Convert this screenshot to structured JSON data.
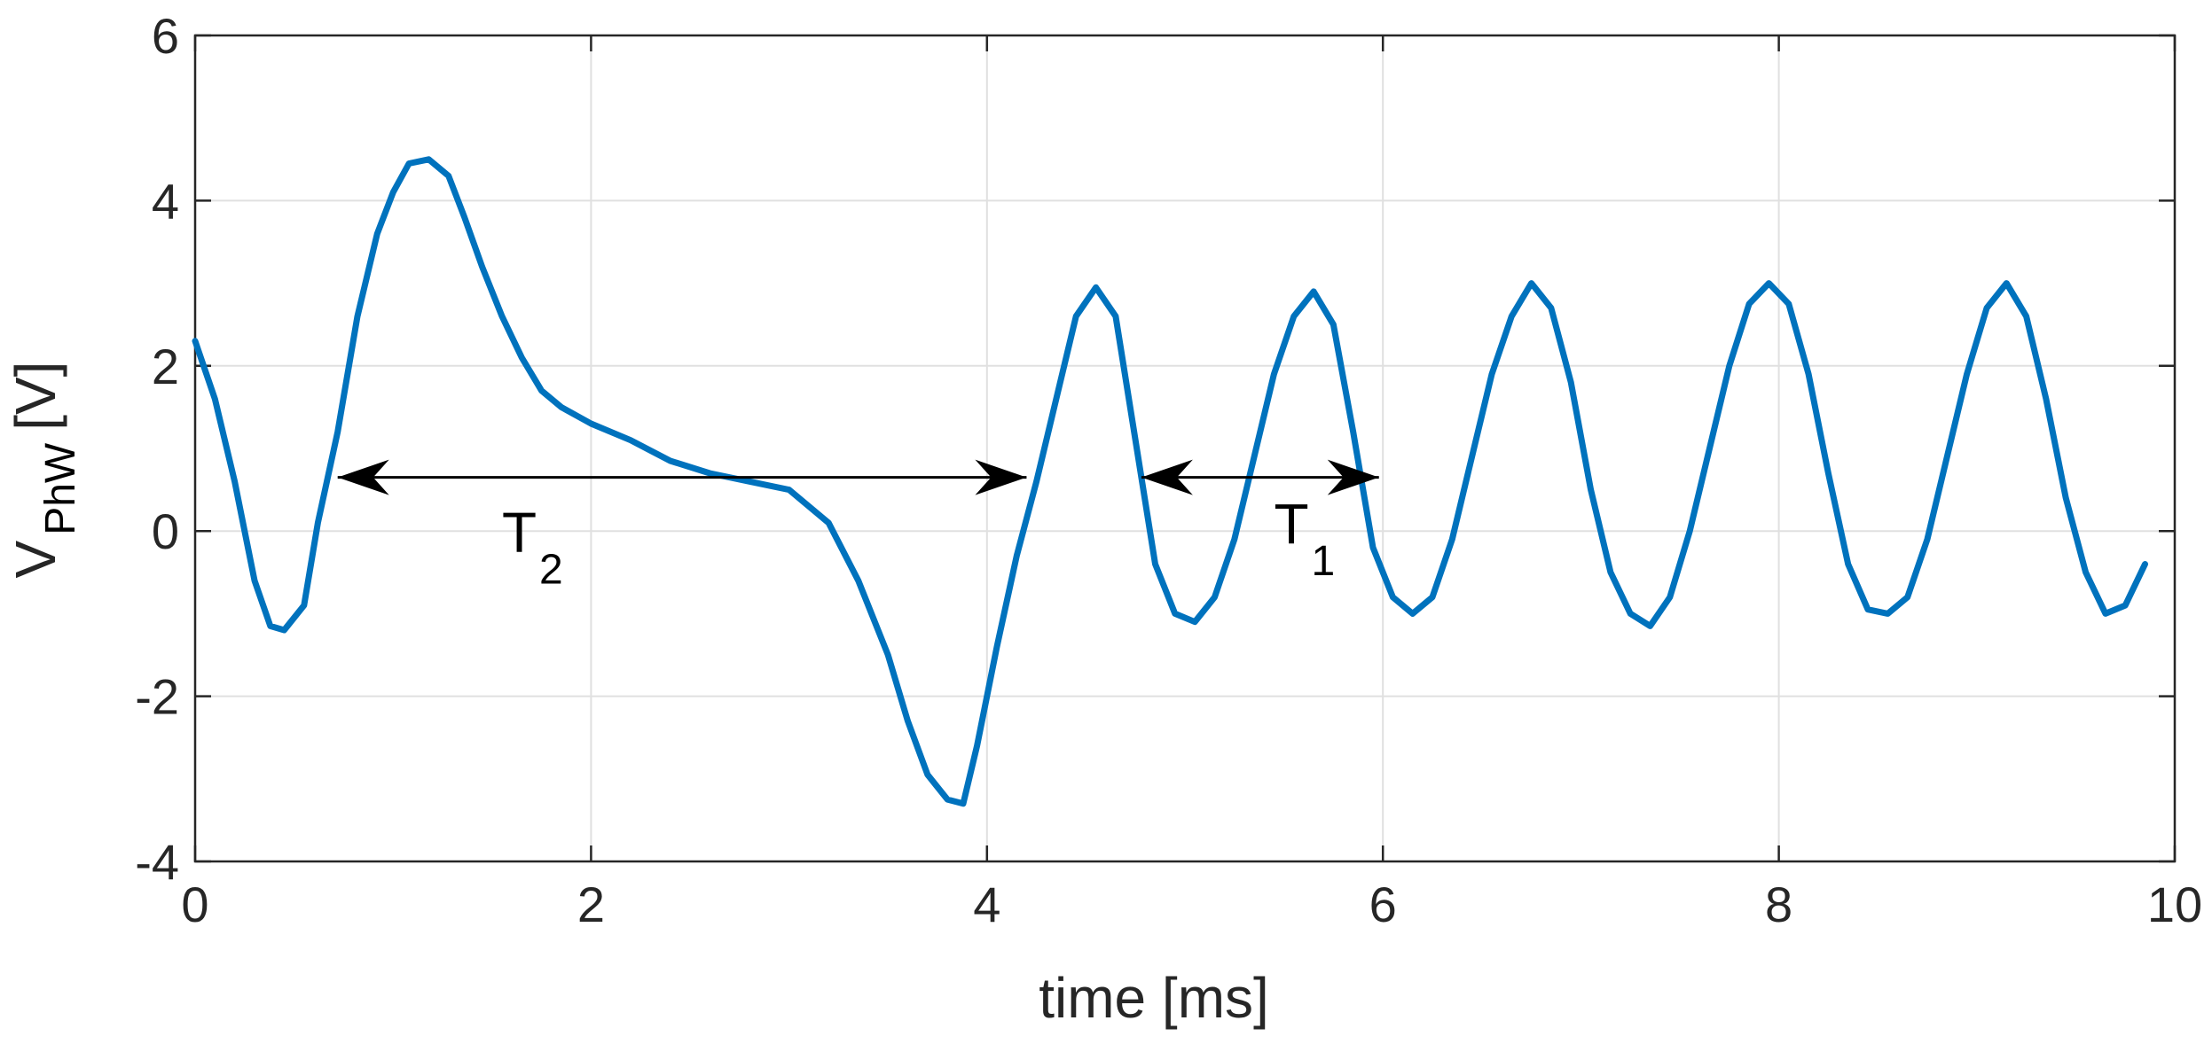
{
  "chart_data": {
    "type": "line",
    "xlabel": "time [ms]",
    "ylabel": {
      "main": "V",
      "subscript": "PhW",
      "unit": "[V]"
    },
    "xlim": [
      0,
      10
    ],
    "ylim": [
      -4,
      6
    ],
    "grid": true,
    "x_ticks": [
      "0",
      "2",
      "4",
      "6",
      "8",
      "10"
    ],
    "y_ticks": [
      "-4",
      "-2",
      "0",
      "2",
      "4",
      "6"
    ],
    "colors": {
      "series": "#0072bd",
      "grid": "#e0e0e0",
      "axes": "#262626",
      "annotation": "#000000"
    },
    "series": [
      {
        "x": [
          0.0,
          0.1,
          0.2,
          0.3,
          0.38,
          0.45,
          0.55,
          0.62,
          0.72,
          0.82,
          0.92,
          1.0,
          1.08,
          1.18,
          1.28,
          1.36,
          1.45,
          1.55,
          1.65,
          1.75,
          1.85,
          2.0,
          2.2,
          2.4,
          2.6,
          2.8,
          3.0,
          3.2,
          3.35,
          3.5,
          3.6,
          3.7,
          3.8,
          3.88,
          3.95,
          4.05,
          4.15,
          4.25,
          4.35,
          4.45,
          4.55,
          4.65,
          4.75,
          4.85,
          4.95,
          5.05,
          5.15,
          5.25,
          5.35,
          5.45,
          5.55,
          5.65,
          5.75,
          5.85,
          5.95,
          6.05,
          6.15,
          6.25,
          6.35,
          6.45,
          6.55,
          6.65,
          6.75,
          6.85,
          6.95,
          7.05,
          7.15,
          7.25,
          7.35,
          7.45,
          7.55,
          7.65,
          7.75,
          7.85,
          7.95,
          8.05,
          8.15,
          8.25,
          8.35,
          8.45,
          8.55,
          8.65,
          8.75,
          8.85,
          8.95,
          9.05,
          9.15,
          9.25,
          9.35,
          9.45,
          9.55,
          9.65,
          9.75,
          9.85
        ],
        "y": [
          2.3,
          1.6,
          0.6,
          -0.6,
          -1.15,
          -1.2,
          -0.9,
          0.1,
          1.2,
          2.6,
          3.6,
          4.1,
          4.45,
          4.5,
          4.3,
          3.8,
          3.2,
          2.6,
          2.1,
          1.7,
          1.5,
          1.3,
          1.1,
          0.85,
          0.7,
          0.6,
          0.5,
          0.1,
          -0.6,
          -1.5,
          -2.3,
          -2.95,
          -3.25,
          -3.3,
          -2.6,
          -1.4,
          -0.3,
          0.6,
          1.6,
          2.6,
          2.95,
          2.6,
          1.1,
          -0.4,
          -1.0,
          -1.1,
          -0.8,
          -0.1,
          0.9,
          1.9,
          2.6,
          2.9,
          2.5,
          1.2,
          -0.2,
          -0.8,
          -1.0,
          -0.8,
          -0.1,
          0.9,
          1.9,
          2.6,
          3.0,
          2.7,
          1.8,
          0.5,
          -0.5,
          -1.0,
          -1.15,
          -0.8,
          0.0,
          1.0,
          2.0,
          2.75,
          3.0,
          2.75,
          1.9,
          0.7,
          -0.4,
          -0.95,
          -1.0,
          -0.8,
          -0.1,
          0.9,
          1.9,
          2.7,
          3.0,
          2.6,
          1.6,
          0.4,
          -0.5,
          -1.0,
          -0.9,
          -0.4
        ]
      }
    ],
    "annotations": [
      {
        "label_main": "T",
        "label_sub": "2",
        "x_start": 0.72,
        "x_end": 4.2,
        "y": 0.65,
        "label_x": 1.55,
        "label_y": -0.25
      },
      {
        "label_main": "T",
        "label_sub": "1",
        "x_start": 4.78,
        "x_end": 5.98,
        "y": 0.65,
        "label_x": 5.45,
        "label_y": -0.15
      }
    ]
  }
}
